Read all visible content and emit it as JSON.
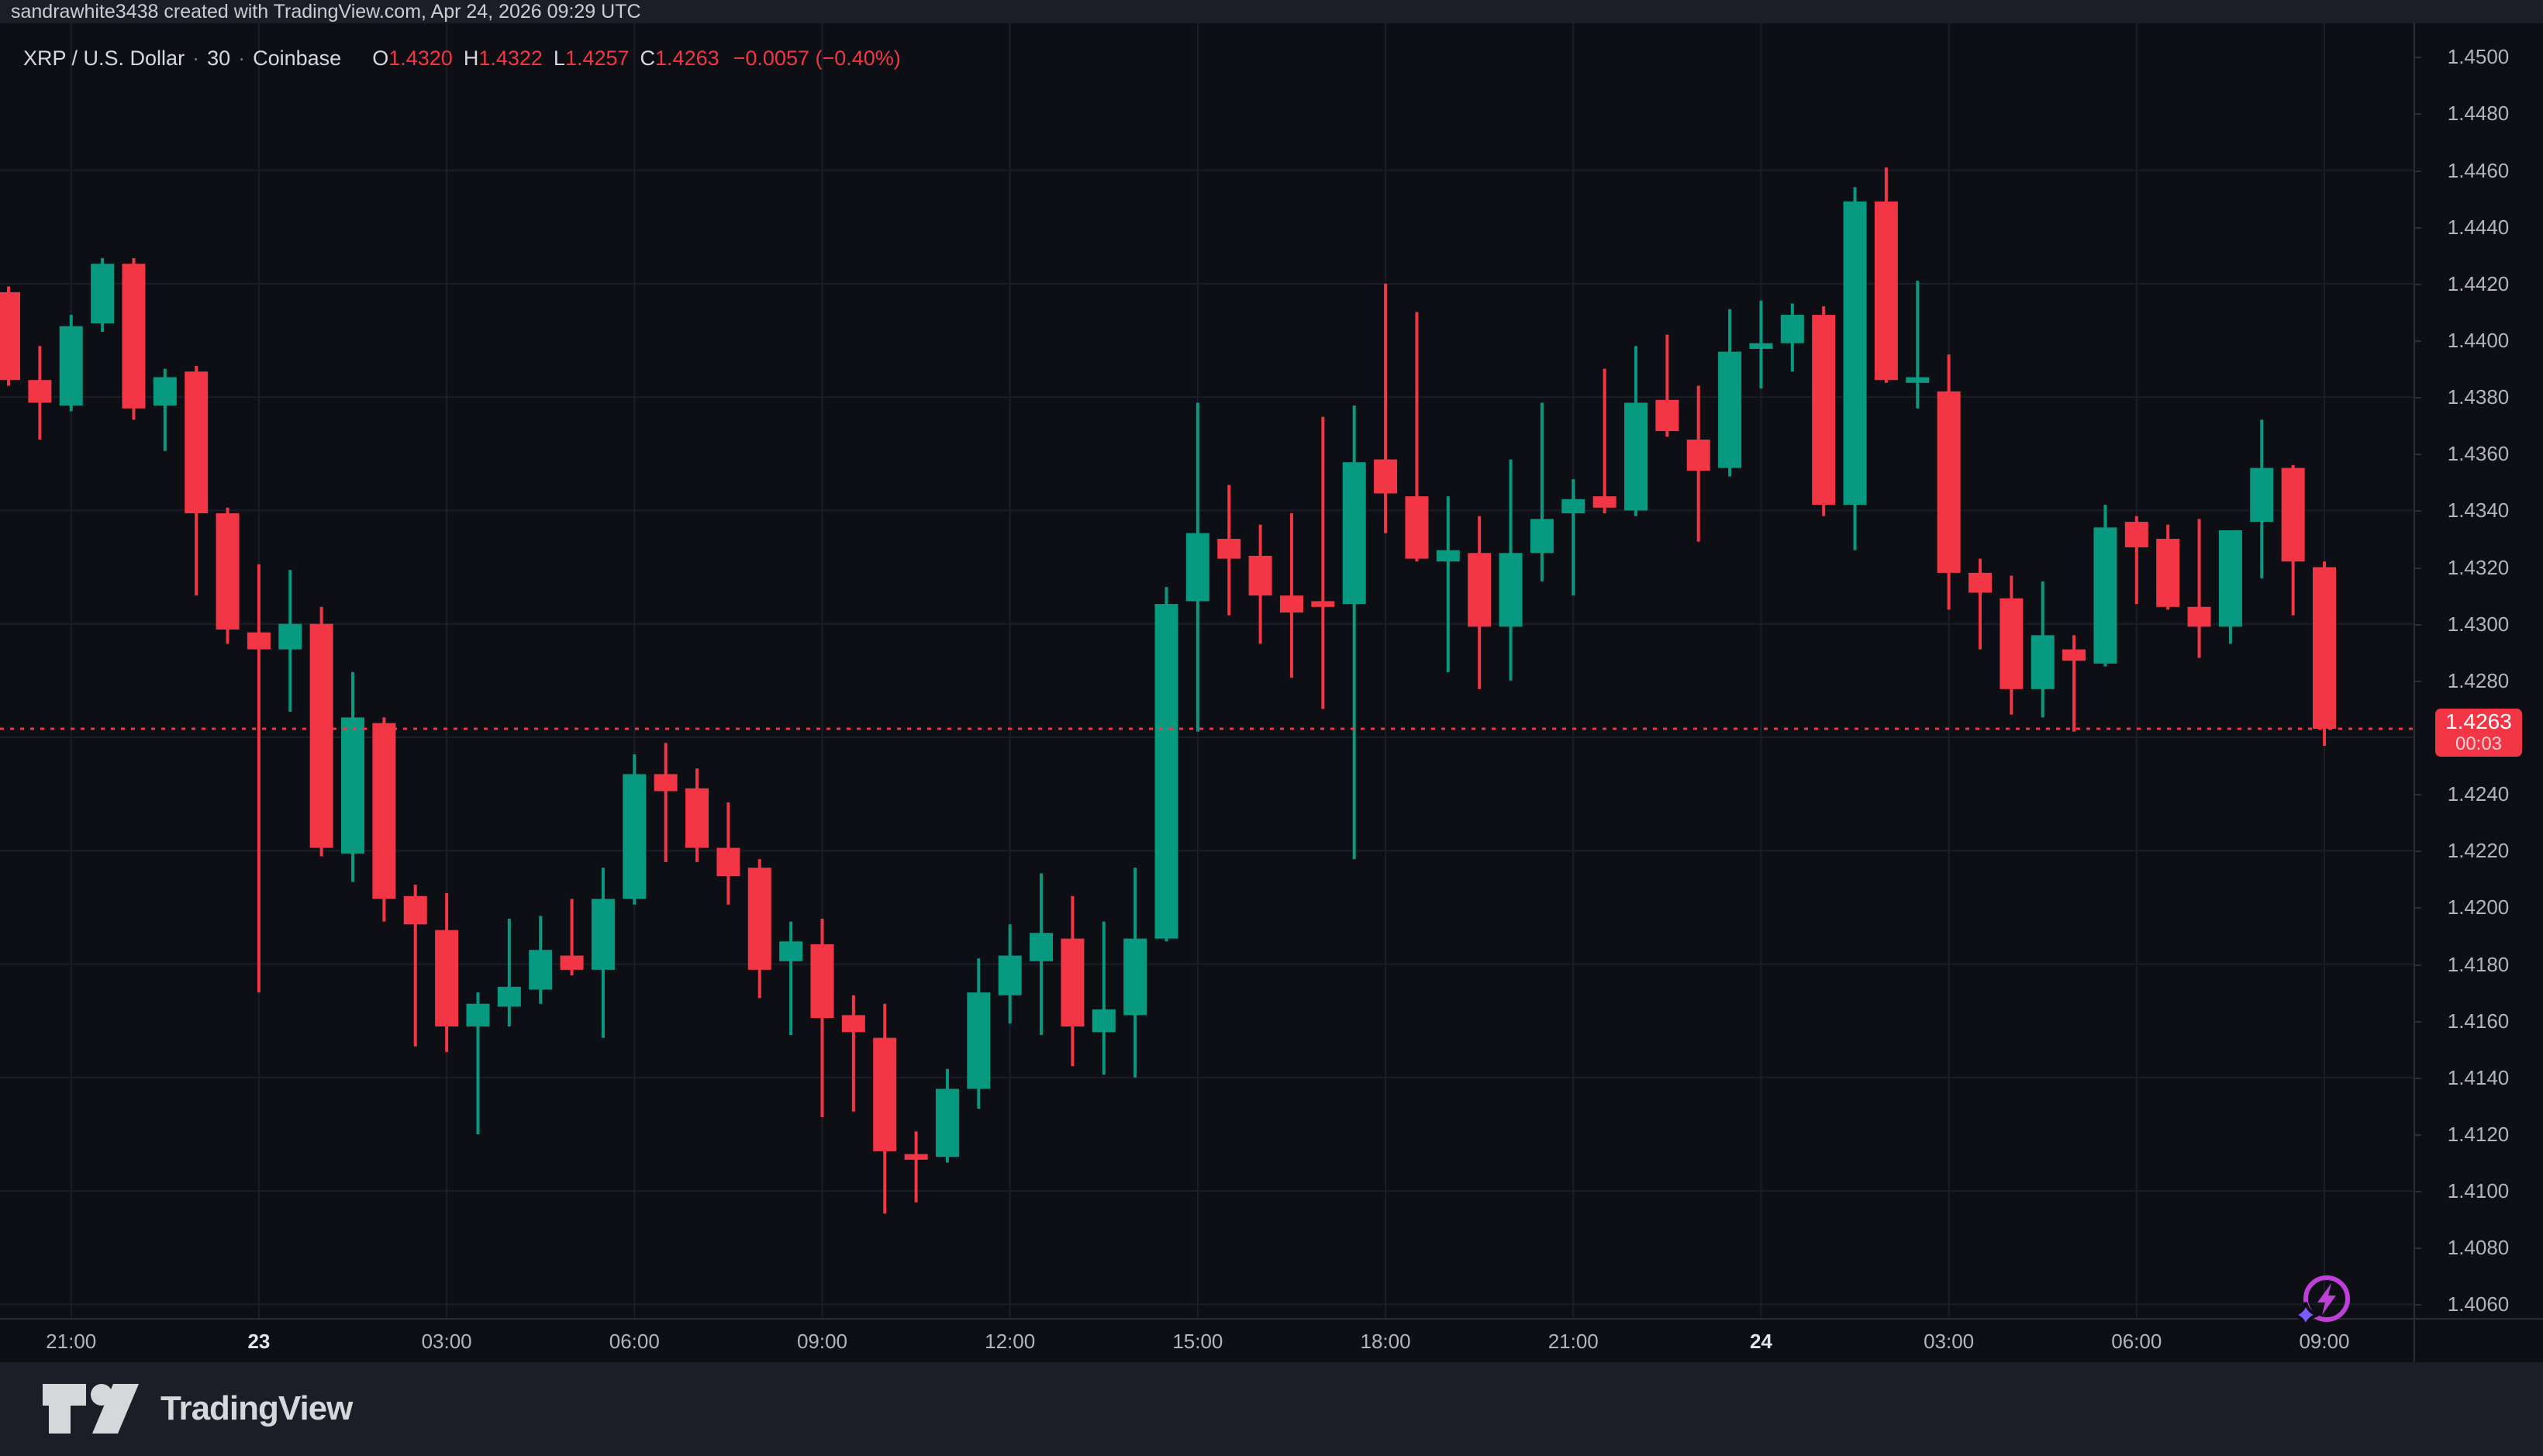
{
  "attribution": "sandrawhite3438 created with TradingView.com, Apr 24, 2026 09:29 UTC",
  "legend": {
    "symbol": "XRP / U.S. Dollar",
    "sep": "·",
    "interval": "30",
    "exchange": "Coinbase",
    "fields": [
      {
        "label": "O",
        "value": "1.4320"
      },
      {
        "label": "H",
        "value": "1.4322"
      },
      {
        "label": "L",
        "value": "1.4257"
      },
      {
        "label": "C",
        "value": "1.4263"
      }
    ],
    "change": "−0.0057 (−0.40%)"
  },
  "price_label": {
    "price": "1.4263",
    "countdown": "00:03"
  },
  "footer": {
    "logo_text": "TradingView"
  },
  "icons": [
    "tradingview-logo",
    "lightning-bolt-icon",
    "sparkle-icon"
  ],
  "colors": {
    "up": "#089981",
    "down": "#f23645",
    "background": "#0e0f14",
    "panel": "#1b1e26",
    "grid": "#1a1e28",
    "axis_border": "#2a2e39",
    "axis_text": "#b2b5be",
    "bright_text": "#e3e5e9",
    "label_bg": "#f23645",
    "bolt": "#bf40d9",
    "sparkle": "#7c5cff",
    "logo": "#d5d7da"
  },
  "chart_data": {
    "type": "candlestick",
    "title": "XRP / U.S. Dollar · 30 · Coinbase",
    "interval_minutes": 30,
    "last_price": 1.4263,
    "legend_position": "top-left",
    "grid": "on",
    "y_axis": {
      "side": "right",
      "min": 1.405,
      "max": 1.4515,
      "tick_step": 0.002,
      "ticks": [
        "1.4500",
        "1.4480",
        "1.4460",
        "1.4440",
        "1.4420",
        "1.4400",
        "1.4380",
        "1.4360",
        "1.4340",
        "1.4320",
        "1.4300",
        "1.4280",
        "1.4240",
        "1.4220",
        "1.4200",
        "1.4180",
        "1.4160",
        "1.4140",
        "1.4120",
        "1.4100",
        "1.4080",
        "1.4060"
      ],
      "grid_prices": [
        1.446,
        1.442,
        1.438,
        1.434,
        1.43,
        1.426,
        1.422,
        1.418,
        1.414,
        1.41,
        1.406
      ]
    },
    "x_axis": {
      "labels": [
        {
          "text": "21:00",
          "i": 2
        },
        {
          "text": "23",
          "i": 8,
          "day": true
        },
        {
          "text": "03:00",
          "i": 14
        },
        {
          "text": "06:00",
          "i": 20
        },
        {
          "text": "09:00",
          "i": 26
        },
        {
          "text": "12:00",
          "i": 32
        },
        {
          "text": "15:00",
          "i": 38
        },
        {
          "text": "18:00",
          "i": 44
        },
        {
          "text": "21:00",
          "i": 50
        },
        {
          "text": "24",
          "i": 56,
          "day": true
        },
        {
          "text": "03:00",
          "i": 62
        },
        {
          "text": "06:00",
          "i": 68
        },
        {
          "text": "09:00",
          "i": 74
        }
      ]
    },
    "candles": [
      {
        "t": "22 20:00",
        "o": 1.4417,
        "h": 1.4419,
        "l": 1.4384,
        "c": 1.4386
      },
      {
        "t": "22 20:30",
        "o": 1.4386,
        "h": 1.4398,
        "l": 1.4365,
        "c": 1.4378
      },
      {
        "t": "22 21:00",
        "o": 1.4377,
        "h": 1.4409,
        "l": 1.4375,
        "c": 1.4405
      },
      {
        "t": "22 21:30",
        "o": 1.4406,
        "h": 1.4429,
        "l": 1.4403,
        "c": 1.4427
      },
      {
        "t": "22 22:00",
        "o": 1.4427,
        "h": 1.4429,
        "l": 1.4372,
        "c": 1.4376
      },
      {
        "t": "22 22:30",
        "o": 1.4377,
        "h": 1.439,
        "l": 1.4361,
        "c": 1.4387
      },
      {
        "t": "22 23:00",
        "o": 1.4389,
        "h": 1.4391,
        "l": 1.431,
        "c": 1.4339
      },
      {
        "t": "22 23:30",
        "o": 1.4339,
        "h": 1.4341,
        "l": 1.4293,
        "c": 1.4298
      },
      {
        "t": "23 00:00",
        "o": 1.4297,
        "h": 1.4321,
        "l": 1.417,
        "c": 1.4291
      },
      {
        "t": "23 00:30",
        "o": 1.4291,
        "h": 1.4319,
        "l": 1.4269,
        "c": 1.43
      },
      {
        "t": "23 01:00",
        "o": 1.43,
        "h": 1.4306,
        "l": 1.4218,
        "c": 1.4221
      },
      {
        "t": "23 01:30",
        "o": 1.4219,
        "h": 1.4283,
        "l": 1.4209,
        "c": 1.4267
      },
      {
        "t": "23 02:00",
        "o": 1.4265,
        "h": 1.4267,
        "l": 1.4195,
        "c": 1.4203
      },
      {
        "t": "23 02:30",
        "o": 1.4204,
        "h": 1.4208,
        "l": 1.4151,
        "c": 1.4194
      },
      {
        "t": "23 03:00",
        "o": 1.4192,
        "h": 1.4205,
        "l": 1.4149,
        "c": 1.4158
      },
      {
        "t": "23 03:30",
        "o": 1.4158,
        "h": 1.417,
        "l": 1.412,
        "c": 1.4166
      },
      {
        "t": "23 04:00",
        "o": 1.4165,
        "h": 1.4196,
        "l": 1.4158,
        "c": 1.4172
      },
      {
        "t": "23 04:30",
        "o": 1.4171,
        "h": 1.4197,
        "l": 1.4166,
        "c": 1.4185
      },
      {
        "t": "23 05:00",
        "o": 1.4183,
        "h": 1.4203,
        "l": 1.4176,
        "c": 1.4178
      },
      {
        "t": "23 05:30",
        "o": 1.4178,
        "h": 1.4214,
        "l": 1.4154,
        "c": 1.4203
      },
      {
        "t": "23 06:00",
        "o": 1.4203,
        "h": 1.4254,
        "l": 1.4201,
        "c": 1.4247
      },
      {
        "t": "23 06:30",
        "o": 1.4247,
        "h": 1.4258,
        "l": 1.4216,
        "c": 1.4241
      },
      {
        "t": "23 07:00",
        "o": 1.4242,
        "h": 1.4249,
        "l": 1.4216,
        "c": 1.4221
      },
      {
        "t": "23 07:30",
        "o": 1.4221,
        "h": 1.4237,
        "l": 1.4201,
        "c": 1.4211
      },
      {
        "t": "23 08:00",
        "o": 1.4214,
        "h": 1.4217,
        "l": 1.4168,
        "c": 1.4178
      },
      {
        "t": "23 08:30",
        "o": 1.4181,
        "h": 1.4195,
        "l": 1.4155,
        "c": 1.4188
      },
      {
        "t": "23 09:00",
        "o": 1.4187,
        "h": 1.4196,
        "l": 1.4126,
        "c": 1.4161
      },
      {
        "t": "23 09:30",
        "o": 1.4162,
        "h": 1.4169,
        "l": 1.4128,
        "c": 1.4156
      },
      {
        "t": "23 10:00",
        "o": 1.4154,
        "h": 1.4166,
        "l": 1.4092,
        "c": 1.4114
      },
      {
        "t": "23 10:30",
        "o": 1.4113,
        "h": 1.4121,
        "l": 1.4096,
        "c": 1.4111
      },
      {
        "t": "23 11:00",
        "o": 1.4112,
        "h": 1.4143,
        "l": 1.411,
        "c": 1.4136
      },
      {
        "t": "23 11:30",
        "o": 1.4136,
        "h": 1.4182,
        "l": 1.4129,
        "c": 1.417
      },
      {
        "t": "23 12:00",
        "o": 1.4169,
        "h": 1.4194,
        "l": 1.4159,
        "c": 1.4183
      },
      {
        "t": "23 12:30",
        "o": 1.4181,
        "h": 1.4212,
        "l": 1.4155,
        "c": 1.4191
      },
      {
        "t": "23 13:00",
        "o": 1.4189,
        "h": 1.4204,
        "l": 1.4144,
        "c": 1.4158
      },
      {
        "t": "23 13:30",
        "o": 1.4156,
        "h": 1.4195,
        "l": 1.4141,
        "c": 1.4164
      },
      {
        "t": "23 14:00",
        "o": 1.4162,
        "h": 1.4214,
        "l": 1.414,
        "c": 1.4189
      },
      {
        "t": "23 14:30",
        "o": 1.4189,
        "h": 1.4313,
        "l": 1.4188,
        "c": 1.4307
      },
      {
        "t": "23 15:00",
        "o": 1.4308,
        "h": 1.4378,
        "l": 1.4262,
        "c": 1.4332
      },
      {
        "t": "23 15:30",
        "o": 1.433,
        "h": 1.4349,
        "l": 1.4303,
        "c": 1.4323
      },
      {
        "t": "23 16:00",
        "o": 1.4324,
        "h": 1.4335,
        "l": 1.4293,
        "c": 1.431
      },
      {
        "t": "23 16:30",
        "o": 1.431,
        "h": 1.4339,
        "l": 1.4281,
        "c": 1.4304
      },
      {
        "t": "23 17:00",
        "o": 1.4308,
        "h": 1.4373,
        "l": 1.427,
        "c": 1.4306
      },
      {
        "t": "23 17:30",
        "o": 1.4307,
        "h": 1.4377,
        "l": 1.4217,
        "c": 1.4357
      },
      {
        "t": "23 18:00",
        "o": 1.4358,
        "h": 1.442,
        "l": 1.4332,
        "c": 1.4346
      },
      {
        "t": "23 18:30",
        "o": 1.4345,
        "h": 1.441,
        "l": 1.4322,
        "c": 1.4323
      },
      {
        "t": "23 19:00",
        "o": 1.4322,
        "h": 1.4345,
        "l": 1.4283,
        "c": 1.4326
      },
      {
        "t": "23 19:30",
        "o": 1.4325,
        "h": 1.4338,
        "l": 1.4277,
        "c": 1.4299
      },
      {
        "t": "23 20:00",
        "o": 1.4299,
        "h": 1.4358,
        "l": 1.428,
        "c": 1.4325
      },
      {
        "t": "23 20:30",
        "o": 1.4325,
        "h": 1.4378,
        "l": 1.4315,
        "c": 1.4337
      },
      {
        "t": "23 21:00",
        "o": 1.4339,
        "h": 1.4351,
        "l": 1.431,
        "c": 1.4344
      },
      {
        "t": "23 21:30",
        "o": 1.4345,
        "h": 1.439,
        "l": 1.4339,
        "c": 1.4341
      },
      {
        "t": "23 22:00",
        "o": 1.434,
        "h": 1.4398,
        "l": 1.4338,
        "c": 1.4378
      },
      {
        "t": "23 22:30",
        "o": 1.4379,
        "h": 1.4402,
        "l": 1.4366,
        "c": 1.4368
      },
      {
        "t": "23 23:00",
        "o": 1.4365,
        "h": 1.4384,
        "l": 1.4329,
        "c": 1.4354
      },
      {
        "t": "23 23:30",
        "o": 1.4355,
        "h": 1.4411,
        "l": 1.4352,
        "c": 1.4396
      },
      {
        "t": "24 00:00",
        "o": 1.4397,
        "h": 1.4414,
        "l": 1.4383,
        "c": 1.4399
      },
      {
        "t": "24 00:30",
        "o": 1.4399,
        "h": 1.4413,
        "l": 1.4389,
        "c": 1.4409
      },
      {
        "t": "24 01:00",
        "o": 1.4409,
        "h": 1.4412,
        "l": 1.4338,
        "c": 1.4342
      },
      {
        "t": "24 01:30",
        "o": 1.4342,
        "h": 1.4454,
        "l": 1.4326,
        "c": 1.4449
      },
      {
        "t": "24 02:00",
        "o": 1.4449,
        "h": 1.4461,
        "l": 1.4385,
        "c": 1.4386
      },
      {
        "t": "24 02:30",
        "o": 1.4385,
        "h": 1.4421,
        "l": 1.4376,
        "c": 1.4387
      },
      {
        "t": "24 03:00",
        "o": 1.4382,
        "h": 1.4395,
        "l": 1.4305,
        "c": 1.4318
      },
      {
        "t": "24 03:30",
        "o": 1.4318,
        "h": 1.4323,
        "l": 1.4291,
        "c": 1.4311
      },
      {
        "t": "24 04:00",
        "o": 1.4309,
        "h": 1.4317,
        "l": 1.4268,
        "c": 1.4277
      },
      {
        "t": "24 04:30",
        "o": 1.4277,
        "h": 1.4315,
        "l": 1.4267,
        "c": 1.4296
      },
      {
        "t": "24 05:00",
        "o": 1.4291,
        "h": 1.4296,
        "l": 1.4262,
        "c": 1.4287
      },
      {
        "t": "24 05:30",
        "o": 1.4286,
        "h": 1.4342,
        "l": 1.4285,
        "c": 1.4334
      },
      {
        "t": "24 06:00",
        "o": 1.4336,
        "h": 1.4338,
        "l": 1.4307,
        "c": 1.4327
      },
      {
        "t": "24 06:30",
        "o": 1.433,
        "h": 1.4335,
        "l": 1.4305,
        "c": 1.4306
      },
      {
        "t": "24 07:00",
        "o": 1.4306,
        "h": 1.4337,
        "l": 1.4288,
        "c": 1.4299
      },
      {
        "t": "24 07:30",
        "o": 1.4299,
        "h": 1.4333,
        "l": 1.4293,
        "c": 1.4333
      },
      {
        "t": "24 08:00",
        "o": 1.4336,
        "h": 1.4372,
        "l": 1.4316,
        "c": 1.4355
      },
      {
        "t": "24 08:30",
        "o": 1.4355,
        "h": 1.4356,
        "l": 1.4303,
        "c": 1.4322
      },
      {
        "t": "24 09:00",
        "o": 1.432,
        "h": 1.4322,
        "l": 1.4257,
        "c": 1.4263
      }
    ]
  }
}
